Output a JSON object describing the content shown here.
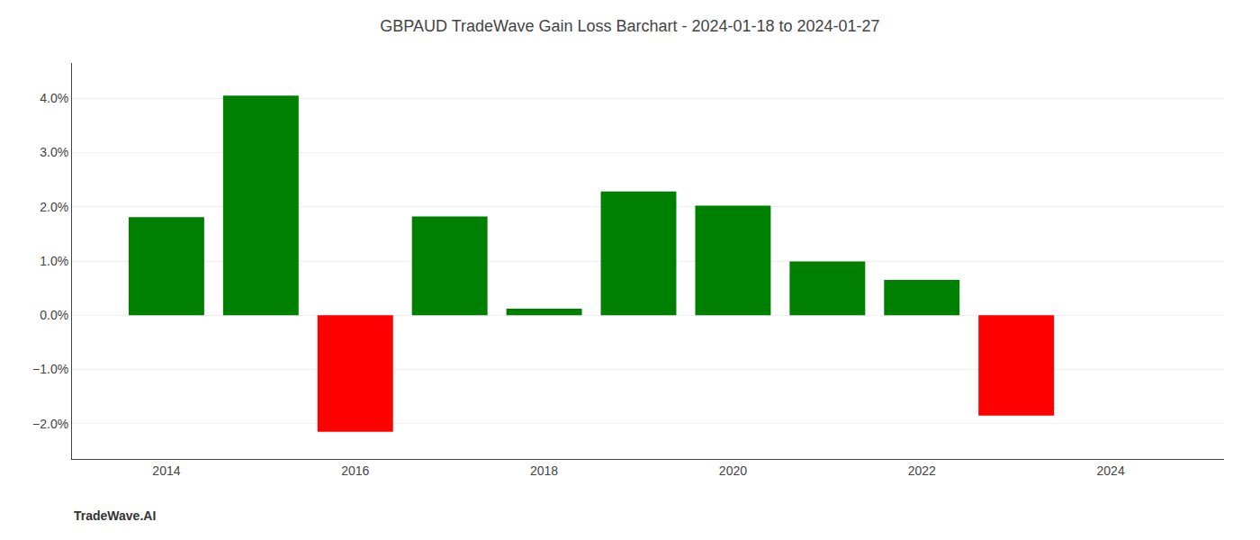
{
  "chart_data": {
    "type": "bar",
    "title": "GBPAUD TradeWave Gain Loss Barchart - 2024-01-18 to 2024-01-27",
    "annotations": [
      "TradeWave.AI"
    ],
    "x": [
      2014,
      2015,
      2016,
      2017,
      2018,
      2019,
      2020,
      2021,
      2022,
      2023
    ],
    "values": [
      0.0181,
      0.0405,
      -0.0215,
      0.0182,
      0.0012,
      0.0228,
      0.0202,
      0.0099,
      0.0065,
      -0.0185
    ],
    "colors": [
      "#008000",
      "#008000",
      "#ff0000",
      "#008000",
      "#008000",
      "#008000",
      "#008000",
      "#008000",
      "#008000",
      "#ff0000"
    ],
    "xlim": [
      2013.0,
      2025.2
    ],
    "xticks": [
      2014,
      2016,
      2018,
      2020,
      2022,
      2024
    ],
    "ylim": [
      -0.0265,
      0.0465
    ],
    "yticks": [
      {
        "value": -0.02,
        "label": "−2.0%"
      },
      {
        "value": -0.01,
        "label": "−1.0%"
      },
      {
        "value": 0.0,
        "label": "0.0%"
      },
      {
        "value": 0.01,
        "label": "1.0%"
      },
      {
        "value": 0.02,
        "label": "2.0%"
      },
      {
        "value": 0.03,
        "label": "3.0%"
      },
      {
        "value": 0.04,
        "label": "4.0%"
      }
    ],
    "grid": true
  }
}
